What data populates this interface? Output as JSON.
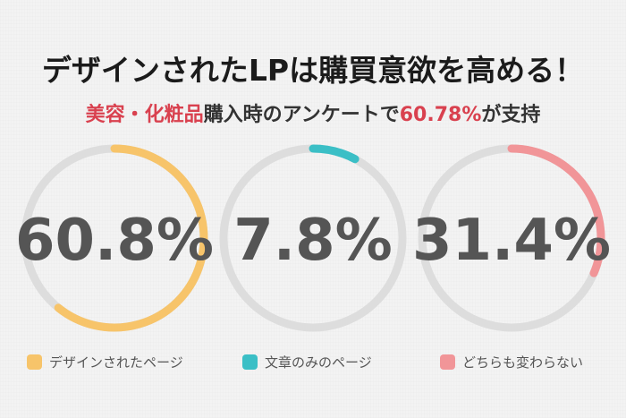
{
  "title": "デザインされたLPは購買意欲を高める！",
  "subtitle": {
    "prefix": "美容・化粧品",
    "middle": "購入時のアンケートで",
    "value": "60.78%",
    "suffix": "が支持"
  },
  "colors": {
    "series_1": "#f7c46a",
    "series_2": "#3bbfc6",
    "series_3": "#f19598",
    "track": "#dddddd",
    "highlight_text": "#d9414f"
  },
  "chart_data": {
    "type": "pie",
    "series": [
      {
        "name": "デザインされたページ",
        "value": 60.8,
        "label": "60.8%"
      },
      {
        "name": "文章のみのページ",
        "value": 7.8,
        "label": "7.8%"
      },
      {
        "name": "どちらも変わらない",
        "value": 31.4,
        "label": "31.4%"
      }
    ]
  }
}
